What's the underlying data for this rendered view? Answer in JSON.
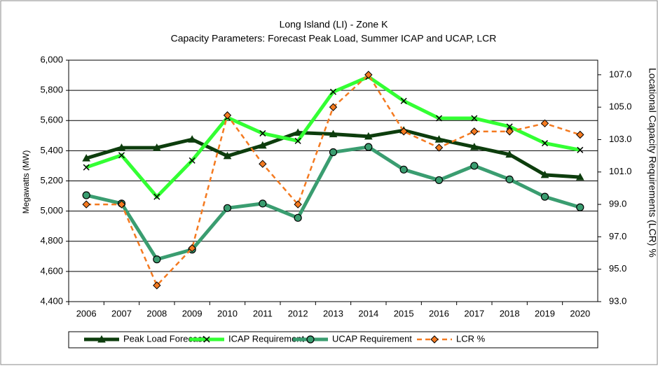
{
  "chart_data": {
    "type": "line",
    "title": "Long Island (LI) - Zone K",
    "subtitle": "Capacity Parameters: Forecast Peak Load, Summer ICAP and UCAP, LCR",
    "y_label": "Megawatts (MW)",
    "y2_label": "Locational Capacity Requirements (LCR) %",
    "categories": [
      "2006",
      "2007",
      "2008",
      "2009",
      "2010",
      "2011",
      "2012",
      "2013",
      "2014",
      "2015",
      "2016",
      "2017",
      "2018",
      "2019",
      "2020"
    ],
    "series": [
      {
        "name": "Peak Load Forecast",
        "color": "#0d3d0d",
        "marker": "triangle",
        "dashed": false,
        "values": [
          5350,
          5420,
          5420,
          5475,
          5365,
          5435,
          5520,
          5510,
          5495,
          5535,
          5475,
          5425,
          5375,
          5240,
          5225
        ]
      },
      {
        "name": "ICAP Requirement",
        "color": "#33ff33",
        "marker": "x",
        "dashed": false,
        "values": [
          5290,
          5370,
          5095,
          5335,
          5620,
          5515,
          5465,
          5790,
          5890,
          5730,
          5615,
          5615,
          5560,
          5450,
          5405
        ]
      },
      {
        "name": "UCAP Requirement",
        "color": "#3a9d70",
        "marker": "circle",
        "dashed": false,
        "values": [
          5105,
          5050,
          4680,
          4745,
          5020,
          5050,
          4955,
          5390,
          5425,
          5275,
          5205,
          5300,
          5210,
          5095,
          5025
        ]
      },
      {
        "name": "LCR %",
        "color": "#f47a20",
        "marker": "diamond",
        "dashed": true,
        "axis": "y2",
        "values": [
          99,
          99,
          94,
          96.3,
          104.5,
          101.5,
          99,
          105,
          107,
          103.5,
          102.5,
          103.5,
          103.5,
          104,
          103.3
        ]
      }
    ],
    "ylim": [
      4400,
      6000
    ],
    "yticks": [
      {
        "value": 4400,
        "label": "4,400"
      },
      {
        "value": 4600,
        "label": "4,600"
      },
      {
        "value": 4800,
        "label": "4,800"
      },
      {
        "value": 5000,
        "label": "5,000"
      },
      {
        "value": 5200,
        "label": "5,200"
      },
      {
        "value": 5400,
        "label": "5,400"
      },
      {
        "value": 5600,
        "label": "5,600"
      },
      {
        "value": 5800,
        "label": "5,800"
      },
      {
        "value": 6000,
        "label": "6,000"
      }
    ],
    "y2lim": [
      93,
      107.9
    ],
    "y2ticks": [
      {
        "value": 93,
        "label": "93.0"
      },
      {
        "value": 95,
        "label": "95.0"
      },
      {
        "value": 97,
        "label": "97.0"
      },
      {
        "value": 99,
        "label": "99.0"
      },
      {
        "value": 101,
        "label": "101.0"
      },
      {
        "value": 103,
        "label": "103.0"
      },
      {
        "value": 105,
        "label": "105.0"
      },
      {
        "value": 107,
        "label": "107.0"
      }
    ],
    "grid": true,
    "legend": "bottom"
  }
}
